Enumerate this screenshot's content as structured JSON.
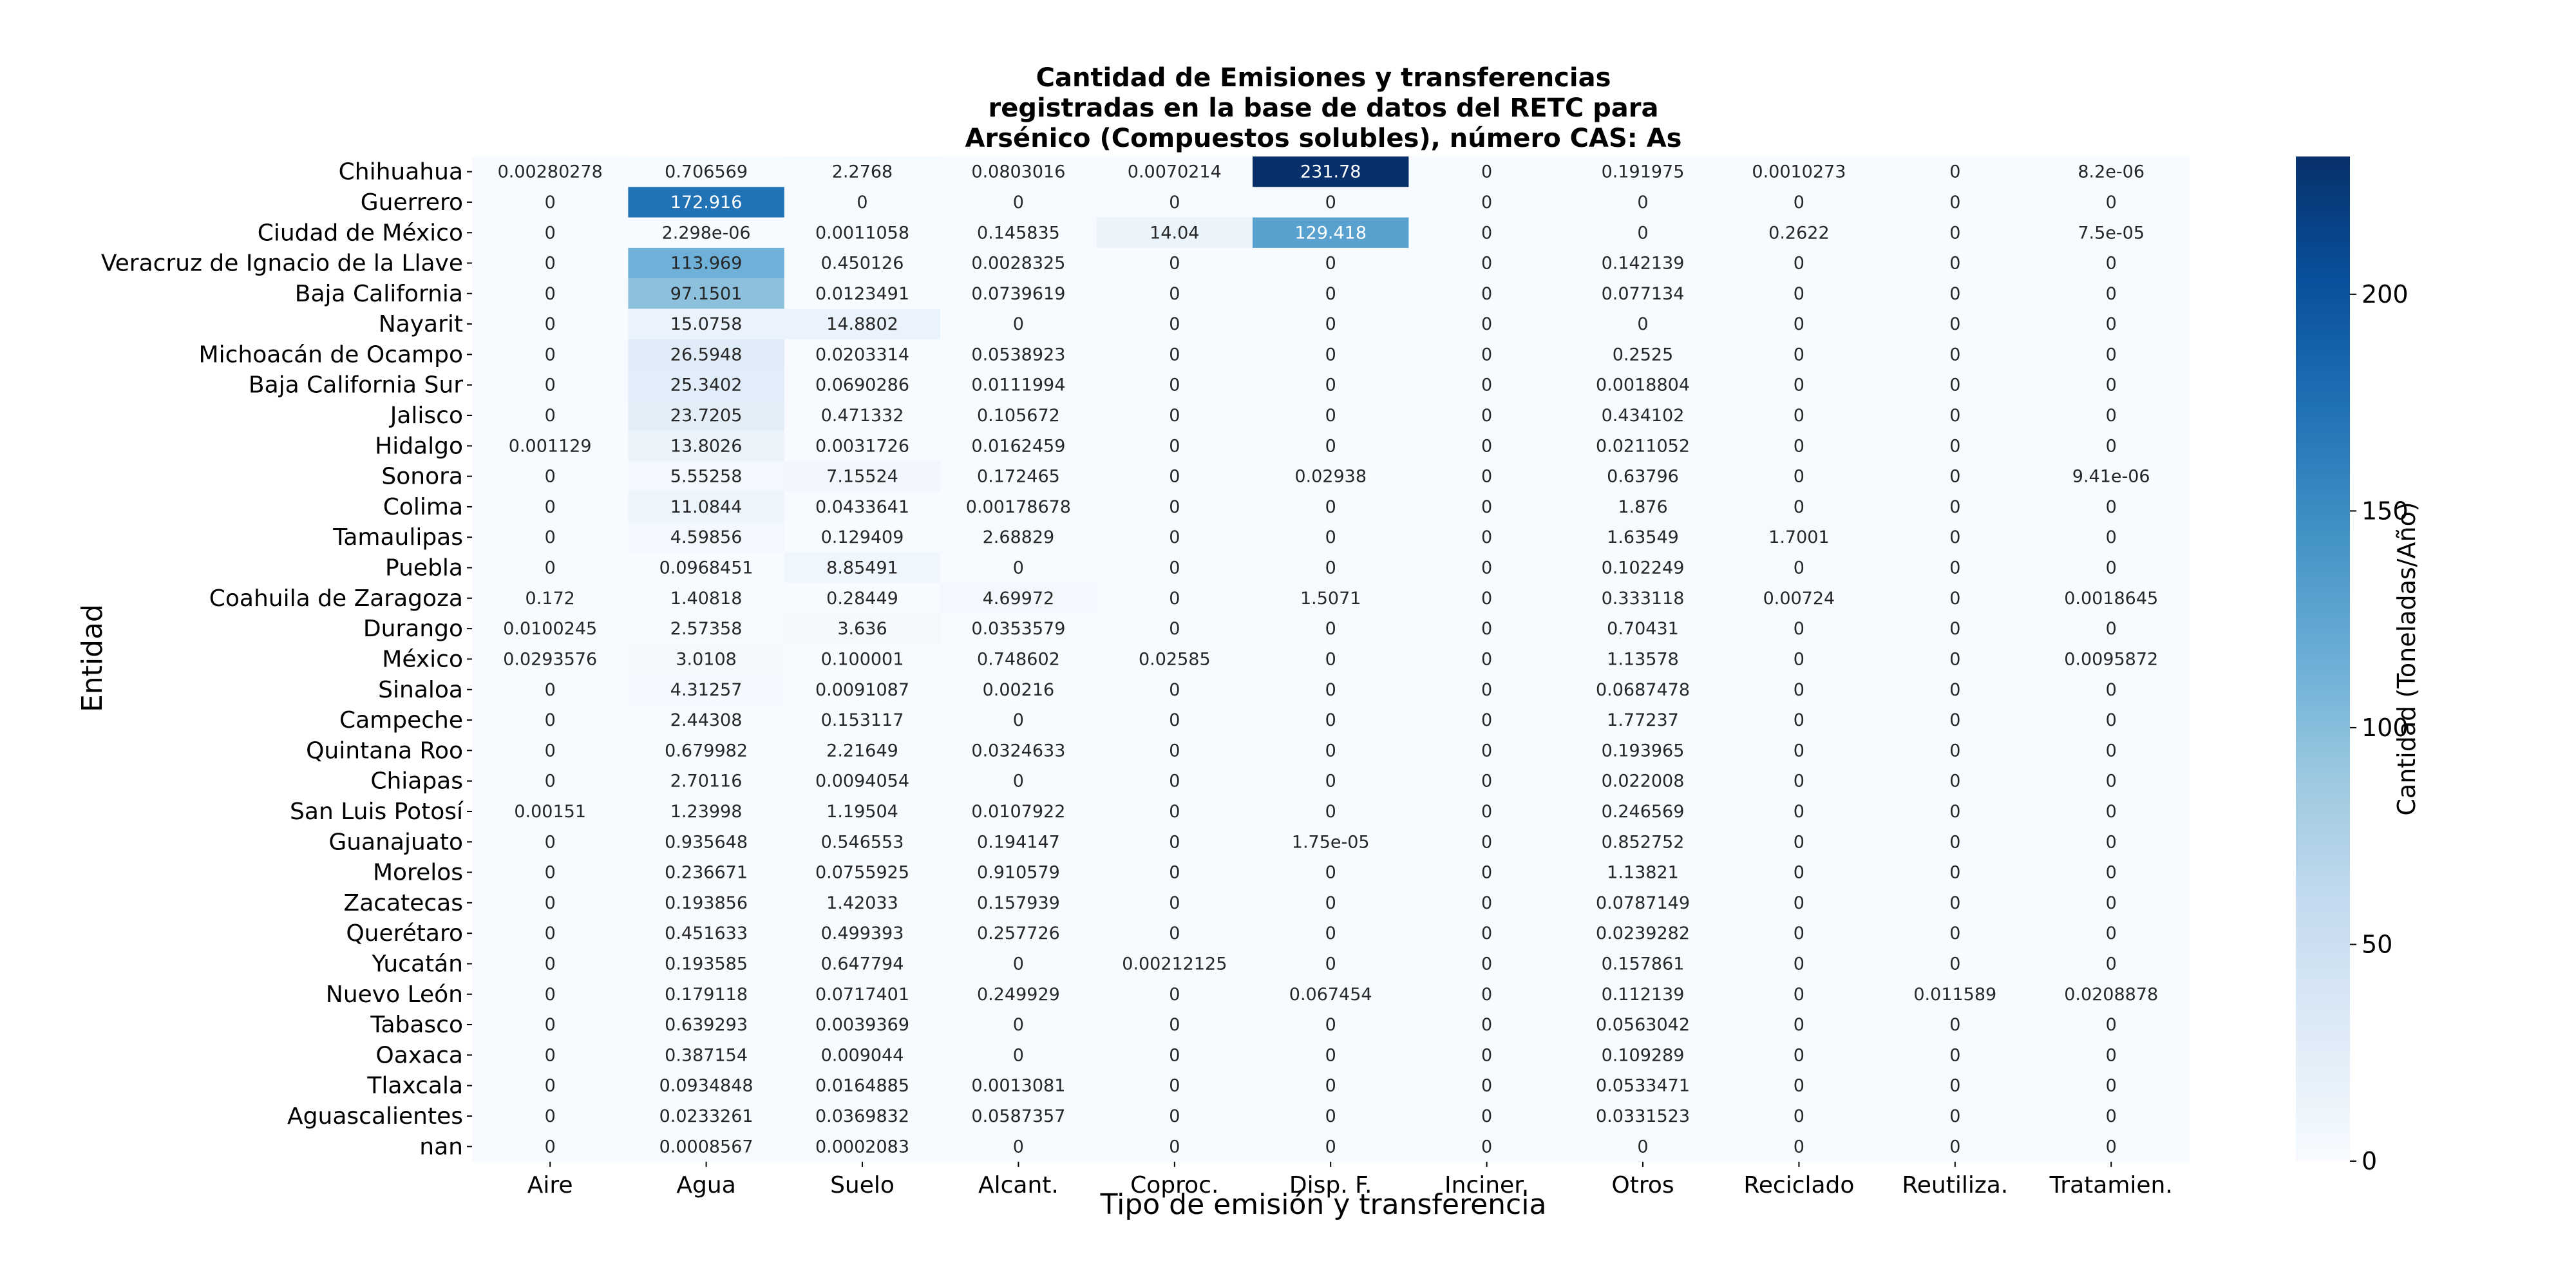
{
  "chart_data": {
    "type": "heatmap",
    "title": [
      "Cantidad de Emisiones y transferencias",
      "registradas en la base de datos del RETC para",
      "Arsénico (Compuestos solubles), número CAS: As"
    ],
    "xlabel": "Tipo de emisión y transferencia",
    "ylabel": "Entidad",
    "colorbar_label": "Cantidad (Toneladas/Año)",
    "colorbar_ticks": [
      "0",
      "50",
      "100",
      "150",
      "200"
    ],
    "colorbar_tick_values": [
      0,
      50,
      100,
      150,
      200
    ],
    "vmin": 0,
    "vmax": 231.78,
    "colormap": "Blues",
    "columns": [
      "Aire",
      "Agua",
      "Suelo",
      "Alcant.",
      "Coproc.",
      "Disp. F.",
      "Inciner.",
      "Otros",
      "Reciclado",
      "Reutiliza.",
      "Tratamien."
    ],
    "rows": [
      "Chihuahua",
      "Guerrero",
      "Ciudad de México",
      "Veracruz de Ignacio de la Llave",
      "Baja California",
      "Nayarit",
      "Michoacán de Ocampo",
      "Baja California Sur",
      "Jalisco",
      "Hidalgo",
      "Sonora",
      "Colima",
      "Tamaulipas",
      "Puebla",
      "Coahuila de Zaragoza",
      "Durango",
      "México",
      "Sinaloa",
      "Campeche",
      "Quintana Roo",
      "Chiapas",
      "San Luis Potosí",
      "Guanajuato",
      "Morelos",
      "Zacatecas",
      "Querétaro",
      "Yucatán",
      "Nuevo León",
      "Tabasco",
      "Oaxaca",
      "Tlaxcala",
      "Aguascalientes",
      "nan"
    ],
    "values": [
      [
        "0.00280278",
        "0.706569",
        "2.2768",
        "0.0803016",
        "0.0070214",
        "231.78",
        "0",
        "0.191975",
        "0.0010273",
        "0",
        "8.2e-06"
      ],
      [
        "0",
        "172.916",
        "0",
        "0",
        "0",
        "0",
        "0",
        "0",
        "0",
        "0",
        "0"
      ],
      [
        "0",
        "2.298e-06",
        "0.0011058",
        "0.145835",
        "14.04",
        "129.418",
        "0",
        "0",
        "0.2622",
        "0",
        "7.5e-05"
      ],
      [
        "0",
        "113.969",
        "0.450126",
        "0.0028325",
        "0",
        "0",
        "0",
        "0.142139",
        "0",
        "0",
        "0"
      ],
      [
        "0",
        "97.1501",
        "0.0123491",
        "0.0739619",
        "0",
        "0",
        "0",
        "0.077134",
        "0",
        "0",
        "0"
      ],
      [
        "0",
        "15.0758",
        "14.8802",
        "0",
        "0",
        "0",
        "0",
        "0",
        "0",
        "0",
        "0"
      ],
      [
        "0",
        "26.5948",
        "0.0203314",
        "0.0538923",
        "0",
        "0",
        "0",
        "0.2525",
        "0",
        "0",
        "0"
      ],
      [
        "0",
        "25.3402",
        "0.0690286",
        "0.0111994",
        "0",
        "0",
        "0",
        "0.0018804",
        "0",
        "0",
        "0"
      ],
      [
        "0",
        "23.7205",
        "0.471332",
        "0.105672",
        "0",
        "0",
        "0",
        "0.434102",
        "0",
        "0",
        "0"
      ],
      [
        "0.001129",
        "13.8026",
        "0.0031726",
        "0.0162459",
        "0",
        "0",
        "0",
        "0.0211052",
        "0",
        "0",
        "0"
      ],
      [
        "0",
        "5.55258",
        "7.15524",
        "0.172465",
        "0",
        "0.02938",
        "0",
        "0.63796",
        "0",
        "0",
        "9.41e-06"
      ],
      [
        "0",
        "11.0844",
        "0.0433641",
        "0.00178678",
        "0",
        "0",
        "0",
        "1.876",
        "0",
        "0",
        "0"
      ],
      [
        "0",
        "4.59856",
        "0.129409",
        "2.68829",
        "0",
        "0",
        "0",
        "1.63549",
        "1.7001",
        "0",
        "0"
      ],
      [
        "0",
        "0.0968451",
        "8.85491",
        "0",
        "0",
        "0",
        "0",
        "0.102249",
        "0",
        "0",
        "0"
      ],
      [
        "0.172",
        "1.40818",
        "0.28449",
        "4.69972",
        "0",
        "1.5071",
        "0",
        "0.333118",
        "0.00724",
        "0",
        "0.0018645"
      ],
      [
        "0.0100245",
        "2.57358",
        "3.636",
        "0.0353579",
        "0",
        "0",
        "0",
        "0.70431",
        "0",
        "0",
        "0"
      ],
      [
        "0.0293576",
        "3.0108",
        "0.100001",
        "0.748602",
        "0.02585",
        "0",
        "0",
        "1.13578",
        "0",
        "0",
        "0.0095872"
      ],
      [
        "0",
        "4.31257",
        "0.0091087",
        "0.00216",
        "0",
        "0",
        "0",
        "0.0687478",
        "0",
        "0",
        "0"
      ],
      [
        "0",
        "2.44308",
        "0.153117",
        "0",
        "0",
        "0",
        "0",
        "1.77237",
        "0",
        "0",
        "0"
      ],
      [
        "0",
        "0.679982",
        "2.21649",
        "0.0324633",
        "0",
        "0",
        "0",
        "0.193965",
        "0",
        "0",
        "0"
      ],
      [
        "0",
        "2.70116",
        "0.0094054",
        "0",
        "0",
        "0",
        "0",
        "0.022008",
        "0",
        "0",
        "0"
      ],
      [
        "0.00151",
        "1.23998",
        "1.19504",
        "0.0107922",
        "0",
        "0",
        "0",
        "0.246569",
        "0",
        "0",
        "0"
      ],
      [
        "0",
        "0.935648",
        "0.546553",
        "0.194147",
        "0",
        "1.75e-05",
        "0",
        "0.852752",
        "0",
        "0",
        "0"
      ],
      [
        "0",
        "0.236671",
        "0.0755925",
        "0.910579",
        "0",
        "0",
        "0",
        "1.13821",
        "0",
        "0",
        "0"
      ],
      [
        "0",
        "0.193856",
        "1.42033",
        "0.157939",
        "0",
        "0",
        "0",
        "0.0787149",
        "0",
        "0",
        "0"
      ],
      [
        "0",
        "0.451633",
        "0.499393",
        "0.257726",
        "0",
        "0",
        "0",
        "0.0239282",
        "0",
        "0",
        "0"
      ],
      [
        "0",
        "0.193585",
        "0.647794",
        "0",
        "0.00212125",
        "0",
        "0",
        "0.157861",
        "0",
        "0",
        "0"
      ],
      [
        "0",
        "0.179118",
        "0.0717401",
        "0.249929",
        "0",
        "0.067454",
        "0",
        "0.112139",
        "0",
        "0.011589",
        "0.0208878"
      ],
      [
        "0",
        "0.639293",
        "0.0039369",
        "0",
        "0",
        "0",
        "0",
        "0.0563042",
        "0",
        "0",
        "0"
      ],
      [
        "0",
        "0.387154",
        "0.009044",
        "0",
        "0",
        "0",
        "0",
        "0.109289",
        "0",
        "0",
        "0"
      ],
      [
        "0",
        "0.0934848",
        "0.0164885",
        "0.0013081",
        "0",
        "0",
        "0",
        "0.0533471",
        "0",
        "0",
        "0"
      ],
      [
        "0",
        "0.0233261",
        "0.0369832",
        "0.0587357",
        "0",
        "0",
        "0",
        "0.0331523",
        "0",
        "0",
        "0"
      ],
      [
        "0",
        "0.0008567",
        "0.0002083",
        "0",
        "0",
        "0",
        "0",
        "0",
        "0",
        "0",
        "0"
      ]
    ]
  }
}
